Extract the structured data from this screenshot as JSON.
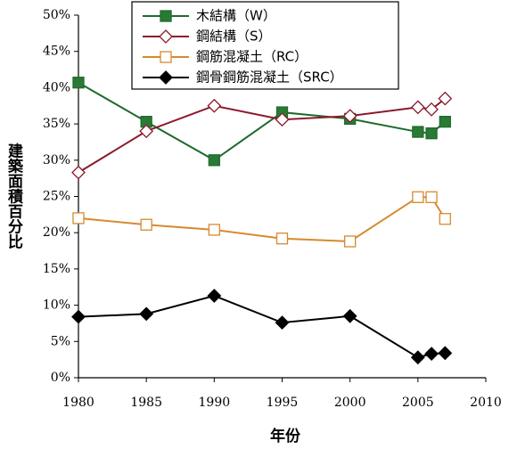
{
  "chart_data": {
    "type": "line",
    "x": [
      1980,
      1985,
      1990,
      1995,
      2000,
      2005,
      2006,
      2007
    ],
    "series": [
      {
        "name": "木結構（W）",
        "color": "#1f6b2c",
        "marker": "square",
        "marker_fill": "#2a7a35",
        "values": [
          40.7,
          35.3,
          30.0,
          36.6,
          35.7,
          33.9,
          33.7,
          35.3
        ]
      },
      {
        "name": "鋼結構（S）",
        "color": "#8b1a2b",
        "marker": "diamond",
        "marker_fill": "#ffffff",
        "values": [
          28.3,
          34.0,
          37.5,
          35.6,
          36.1,
          37.3,
          37.0,
          38.5
        ]
      },
      {
        "name": "鋼筋混凝土（RC）",
        "color": "#d68a2e",
        "marker": "square",
        "marker_fill": "#ffffff",
        "values": [
          22.0,
          21.1,
          20.4,
          19.2,
          18.8,
          24.9,
          24.9,
          21.9
        ]
      },
      {
        "name": "鋼骨鋼筋混凝土（SRC）",
        "color": "#000000",
        "marker": "diamond",
        "marker_fill": "#000000",
        "values": [
          8.4,
          8.8,
          11.3,
          7.6,
          8.5,
          2.8,
          3.3,
          3.4
        ]
      }
    ],
    "xlabel": "年份",
    "ylabel": "建築面積百分比",
    "xlim": [
      1980,
      2010
    ],
    "xticks": [
      1980,
      1985,
      1990,
      1995,
      2000,
      2005,
      2010
    ],
    "ylim": [
      0,
      50
    ],
    "yticks": [
      {
        "value": 0,
        "label": "0%"
      },
      {
        "value": 5,
        "label": "5%"
      },
      {
        "value": 10,
        "label": "10%"
      },
      {
        "value": 15,
        "label": "15%"
      },
      {
        "value": 20,
        "label": "20%"
      },
      {
        "value": 25,
        "label": "25%"
      },
      {
        "value": 30,
        "label": "30%"
      },
      {
        "value": 35,
        "label": "35%"
      },
      {
        "value": 40,
        "label": "40%"
      },
      {
        "value": 45,
        "label": "45%"
      },
      {
        "value": 50,
        "label": "50%"
      }
    ]
  }
}
